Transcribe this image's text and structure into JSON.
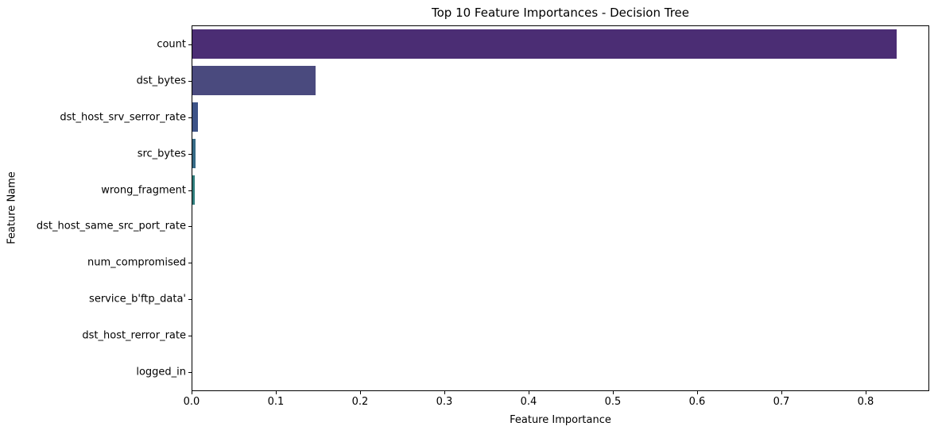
{
  "chart_data": {
    "type": "bar",
    "orientation": "horizontal",
    "title": "Top 10 Feature Importances - Decision Tree",
    "xlabel": "Feature Importance",
    "ylabel": "Feature Name",
    "categories": [
      "count",
      "dst_bytes",
      "dst_host_srv_serror_rate",
      "src_bytes",
      "wrong_fragment",
      "dst_host_same_src_port_rate",
      "num_compromised",
      "service_b'ftp_data'",
      "dst_host_rerror_rate",
      "logged_in"
    ],
    "values": [
      0.835,
      0.146,
      0.0066,
      0.0042,
      0.0028,
      0.0004,
      0.0003,
      0.0002,
      0.0002,
      0.0001
    ],
    "bar_colors": [
      "#4b2d74",
      "#4a4a7e",
      "#3d5387",
      "#366a86",
      "#2f7d7c",
      "#3c9379",
      "#52ab6d",
      "#7fbf5e",
      "#accd55",
      "#d8d858"
    ],
    "xlim": [
      0.0,
      0.875
    ],
    "x_ticks": [
      "0.0",
      "0.1",
      "0.2",
      "0.3",
      "0.4",
      "0.5",
      "0.6",
      "0.7",
      "0.8"
    ],
    "grid": false,
    "legend": "none",
    "background_color": "#ffffff",
    "spine_color": "#000000"
  }
}
